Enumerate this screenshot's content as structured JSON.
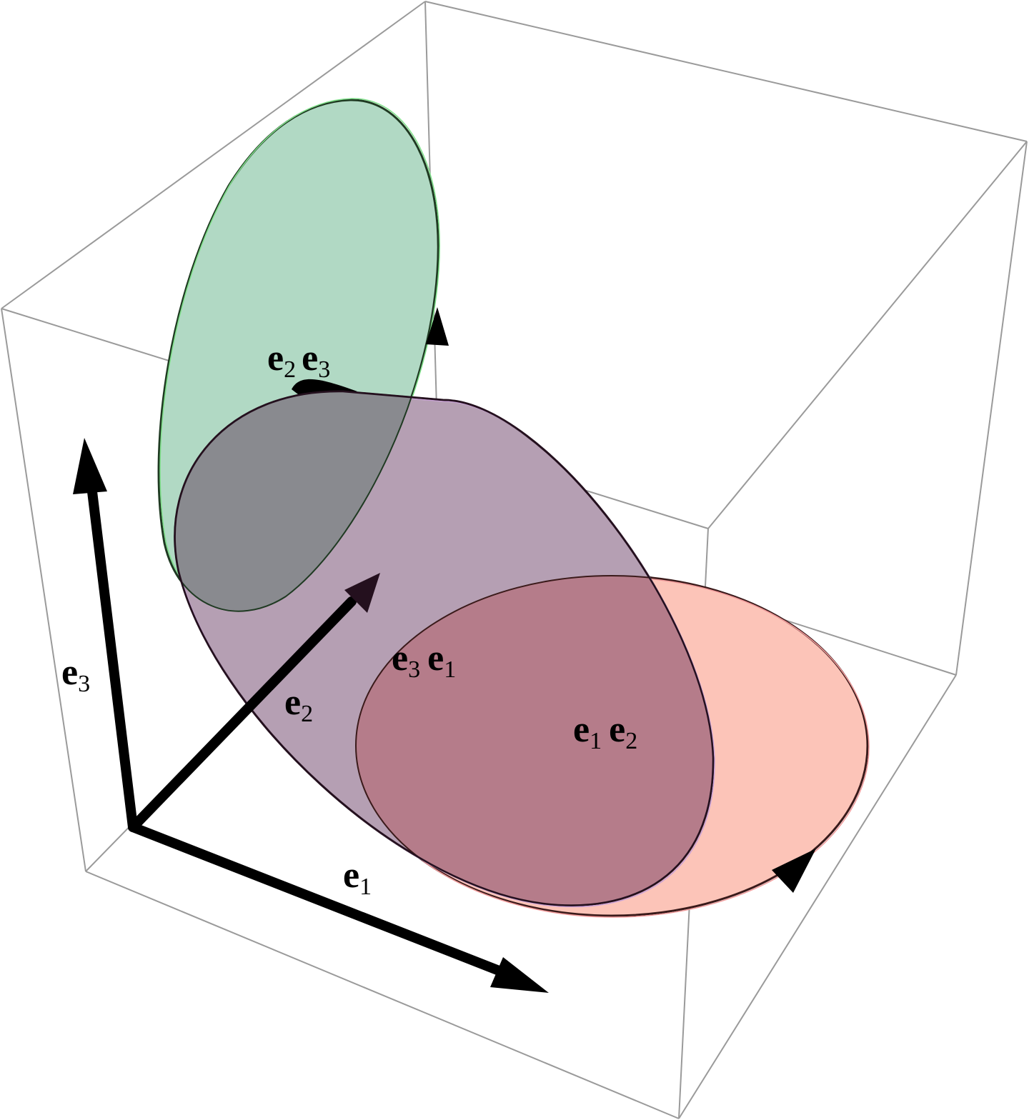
{
  "colors": {
    "box": "#9a9a9a",
    "green_fill": "#b1d9c4",
    "green_edge": "#7fe08a",
    "purple_fill": "#b59fb3",
    "purple_edge": "#c9a2d6",
    "salmon_fill": "#fcc4b8",
    "salmon_edge": "#f09a9a",
    "overlap_green_purple": "#898a8f",
    "overlap_salmon_purple": "#b57c8a",
    "arrow": "#000000",
    "arrow_e2": "#24101e"
  },
  "axes": {
    "e1": {
      "base": "e",
      "sub": "1"
    },
    "e2": {
      "base": "e",
      "sub": "2"
    },
    "e3": {
      "base": "e",
      "sub": "3"
    }
  },
  "planes": {
    "e2e3": {
      "a": "e",
      "a_sub": "2",
      "b": "e",
      "b_sub": "3",
      "color": "green"
    },
    "e3e1": {
      "a": "e",
      "a_sub": "3",
      "b": "e",
      "b_sub": "1",
      "color": "purple"
    },
    "e1e2": {
      "a": "e",
      "a_sub": "1",
      "b": "e",
      "b_sub": "2",
      "color": "salmon"
    }
  }
}
